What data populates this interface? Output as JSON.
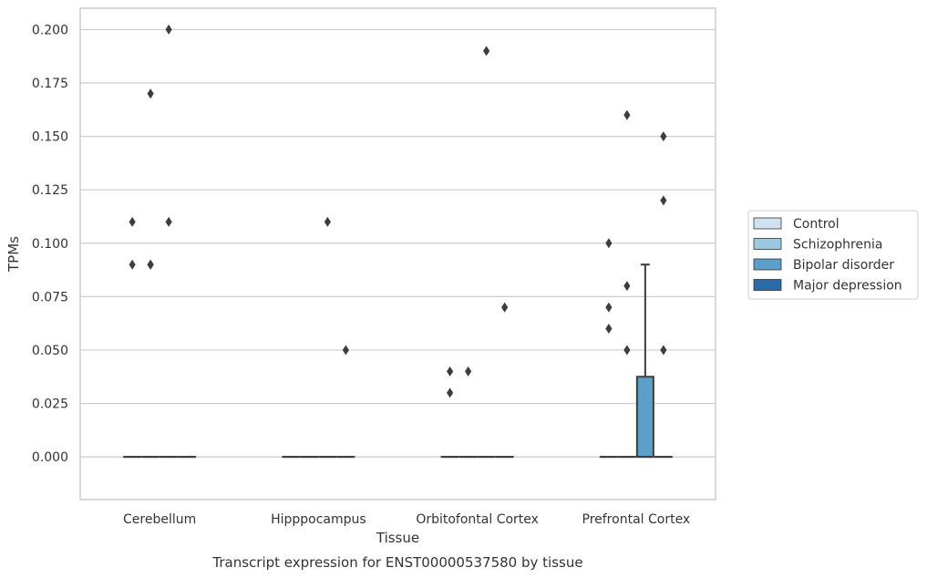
{
  "chart_data": {
    "type": "box",
    "xlabel": "Tissue",
    "ylabel": "TPMs",
    "caption": "Transcript expression for ENST00000537580 by tissue",
    "ylim": [
      -0.02,
      0.21
    ],
    "yticks": [
      0.0,
      0.025,
      0.05,
      0.075,
      0.1,
      0.125,
      0.15,
      0.175,
      0.2
    ],
    "ytick_labels": [
      "0.000",
      "0.025",
      "0.050",
      "0.075",
      "0.100",
      "0.125",
      "0.150",
      "0.175",
      "0.200"
    ],
    "grid": true,
    "legend_position": "right",
    "categories": [
      "Cerebellum",
      "Hipppocampus",
      "Orbitofontal Cortex",
      "Prefrontal Cortex"
    ],
    "series": [
      {
        "name": "Control",
        "color": "#d0e2f1",
        "boxes": [
          {
            "q1": 0,
            "median": 0,
            "q3": 0,
            "whisker_low": 0,
            "whisker_high": 0,
            "outliers": [
              0.09,
              0.11
            ]
          },
          {
            "q1": 0,
            "median": 0,
            "q3": 0,
            "whisker_low": 0,
            "whisker_high": 0,
            "outliers": []
          },
          {
            "q1": 0,
            "median": 0,
            "q3": 0,
            "whisker_low": 0,
            "whisker_high": 0,
            "outliers": [
              0.03,
              0.04
            ]
          },
          {
            "q1": 0,
            "median": 0,
            "q3": 0,
            "whisker_low": 0,
            "whisker_high": 0,
            "outliers": [
              0.06,
              0.07,
              0.1
            ]
          }
        ]
      },
      {
        "name": "Schizophrenia",
        "color": "#9ac8e0",
        "boxes": [
          {
            "q1": 0,
            "median": 0,
            "q3": 0,
            "whisker_low": 0,
            "whisker_high": 0,
            "outliers": [
              0.09,
              0.09,
              0.17
            ]
          },
          {
            "q1": 0,
            "median": 0,
            "q3": 0,
            "whisker_low": 0,
            "whisker_high": 0,
            "outliers": []
          },
          {
            "q1": 0,
            "median": 0,
            "q3": 0,
            "whisker_low": 0,
            "whisker_high": 0,
            "outliers": [
              0.04
            ]
          },
          {
            "q1": 0,
            "median": 0,
            "q3": 0,
            "whisker_low": 0,
            "whisker_high": 0,
            "outliers": [
              0.05,
              0.08,
              0.16
            ]
          }
        ]
      },
      {
        "name": "Bipolar disorder",
        "color": "#5b9fcb",
        "boxes": [
          {
            "q1": 0,
            "median": 0,
            "q3": 0,
            "whisker_low": 0,
            "whisker_high": 0,
            "outliers": [
              0.11,
              0.2
            ]
          },
          {
            "q1": 0,
            "median": 0,
            "q3": 0,
            "whisker_low": 0,
            "whisker_high": 0,
            "outliers": [
              0.11
            ]
          },
          {
            "q1": 0,
            "median": 0,
            "q3": 0,
            "whisker_low": 0,
            "whisker_high": 0,
            "outliers": [
              0.19
            ]
          },
          {
            "q1": 0,
            "median": 0,
            "q3": 0.0375,
            "whisker_low": 0,
            "whisker_high": 0.09,
            "outliers": []
          }
        ]
      },
      {
        "name": "Major depression",
        "color": "#2b6ba8",
        "boxes": [
          {
            "q1": 0,
            "median": 0,
            "q3": 0,
            "whisker_low": 0,
            "whisker_high": 0,
            "outliers": []
          },
          {
            "q1": 0,
            "median": 0,
            "q3": 0,
            "whisker_low": 0,
            "whisker_high": 0,
            "outliers": [
              0.05
            ]
          },
          {
            "q1": 0,
            "median": 0,
            "q3": 0,
            "whisker_low": 0,
            "whisker_high": 0,
            "outliers": [
              0.07
            ]
          },
          {
            "q1": 0,
            "median": 0,
            "q3": 0,
            "whisker_low": 0,
            "whisker_high": 0,
            "outliers": [
              0.05,
              0.12,
              0.15
            ]
          }
        ]
      }
    ]
  }
}
